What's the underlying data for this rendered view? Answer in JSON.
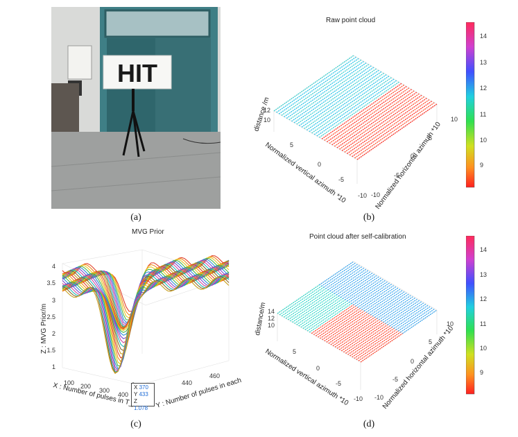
{
  "captions": {
    "a": "(a)",
    "b": "(b)",
    "c": "(c)",
    "d": "(d)"
  },
  "photo": {
    "sign_text": "HIT"
  },
  "panel_b": {
    "title": "Raw point cloud",
    "z_label": "distance /m",
    "z_ticks": [
      "12",
      "10"
    ],
    "x_label": "Normalized vertical azimuth *10",
    "x_ticks": [
      "5",
      "0",
      "-5",
      "-10"
    ],
    "y_label": "Normalized horizontal azimuth *10",
    "y_ticks": [
      "10",
      "5",
      "0",
      "-5",
      "-10"
    ],
    "colorbar_ticks": [
      "14",
      "13",
      "12",
      "11",
      "10",
      "9"
    ]
  },
  "panel_c": {
    "title": "MVG Prior",
    "z_label": "Z : MVG Prior/m",
    "z_ticks": [
      "4",
      "3.5",
      "3",
      "2.5",
      "2",
      "1.5",
      "1"
    ],
    "x_label": "X : Number of pulses in T_s",
    "x_ticks": [
      "100",
      "200",
      "300",
      "400"
    ],
    "y_label": "Y : Number of pulses in each row",
    "y_ticks": [
      "440",
      "460"
    ],
    "datatip": {
      "x_label": "X",
      "x": "370",
      "y_label": "Y",
      "y": "433",
      "z_label": "Z",
      "z": "1.078"
    }
  },
  "panel_d": {
    "title": "Point cloud after self-calibration",
    "z_label": "distance/m",
    "z_ticks": [
      "14",
      "12",
      "10"
    ],
    "x_label": "Normalized vertical azimuth *10",
    "x_ticks": [
      "5",
      "0",
      "-5",
      "-10"
    ],
    "y_label": "Normalized horizontal azimuth *10",
    "y_ticks": [
      "10",
      "5",
      "0",
      "-5",
      "-10"
    ],
    "colorbar_ticks": [
      "14",
      "13",
      "12",
      "11",
      "10",
      "9"
    ]
  },
  "colors": {
    "cb_top": "#ff2a2a",
    "cb_mid": "#2ee64a",
    "cb_bottom": "#ff3030"
  }
}
